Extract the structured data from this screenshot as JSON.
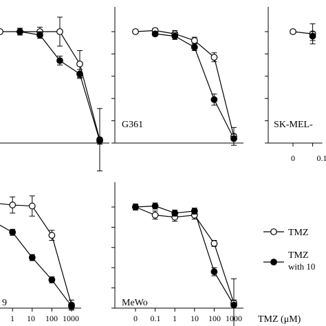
{
  "chart_data": [
    {
      "type": "line",
      "panel_label": "",
      "x": [
        0,
        0.1,
        1,
        10,
        100,
        1000
      ],
      "series": [
        {
          "name": "TMZ",
          "values": [
            100,
            100,
            100,
            100,
            71,
            3
          ],
          "errors": [
            0,
            3,
            4,
            13,
            12,
            28
          ]
        },
        {
          "name": "TMZ with 10",
          "values": [
            null,
            100,
            97,
            74,
            62,
            2
          ],
          "errors": [
            null,
            3,
            3,
            4,
            4,
            3
          ]
        }
      ]
    },
    {
      "type": "line",
      "panel_label": "G361",
      "x": [
        0,
        0.1,
        1,
        10,
        100,
        1000
      ],
      "series": [
        {
          "name": "TMZ",
          "values": [
            100,
            101,
            98,
            92,
            77,
            6
          ],
          "errors": [
            0,
            2,
            3,
            3,
            4,
            8
          ]
        },
        {
          "name": "TMZ with 10",
          "values": [
            null,
            98,
            96,
            86,
            39,
            4
          ],
          "errors": [
            null,
            2,
            3,
            3,
            5,
            4
          ]
        }
      ]
    },
    {
      "type": "line",
      "panel_label": "SK-MEL-",
      "x": [
        0,
        0.1
      ],
      "series": [
        {
          "name": "TMZ",
          "values": [
            100,
            98
          ],
          "errors": [
            0,
            9
          ]
        },
        {
          "name": "TMZ with 10",
          "values": [
            null,
            96
          ],
          "errors": [
            null,
            4
          ]
        }
      ]
    },
    {
      "type": "line",
      "panel_label": "9",
      "x": [
        0,
        0.1,
        1,
        10,
        100,
        1000
      ],
      "series": [
        {
          "name": "TMZ",
          "values": [
            100,
            104,
            102,
            101,
            72,
            3
          ],
          "errors": [
            0,
            10,
            8,
            10,
            5,
            5
          ]
        },
        {
          "name": "TMZ with 10",
          "values": [
            null,
            86,
            75,
            50,
            28,
            2
          ],
          "errors": [
            null,
            3,
            3,
            3,
            3,
            3
          ]
        }
      ]
    },
    {
      "type": "line",
      "panel_label": "MeWo",
      "x": [
        0,
        0.1,
        1,
        10,
        100,
        1000
      ],
      "series": [
        {
          "name": "TMZ",
          "values": [
            100,
            92,
            90,
            92,
            64,
            5
          ],
          "errors": [
            3,
            4,
            4,
            4,
            3,
            3
          ]
        },
        {
          "name": "TMZ with 10",
          "values": [
            100,
            101,
            94,
            96,
            36,
            3
          ],
          "errors": [
            3,
            3,
            3,
            3,
            4,
            26
          ]
        }
      ]
    }
  ],
  "axis": {
    "x_tick_labels": [
      "0",
      "0.1",
      "1",
      "10",
      "100",
      "1000"
    ],
    "x_title": "TMZ (μM)",
    "partial_tick_labels": [
      "0",
      "0.1"
    ]
  },
  "legend": {
    "items": [
      {
        "label": "TMZ",
        "marker": "open-circle"
      },
      {
        "label": "TMZ",
        "sublabel": "with 10",
        "marker": "filled-circle"
      }
    ]
  },
  "colors": {
    "line": "#000000",
    "open_marker_fill": "#ffffff",
    "filled_marker_fill": "#000000"
  }
}
